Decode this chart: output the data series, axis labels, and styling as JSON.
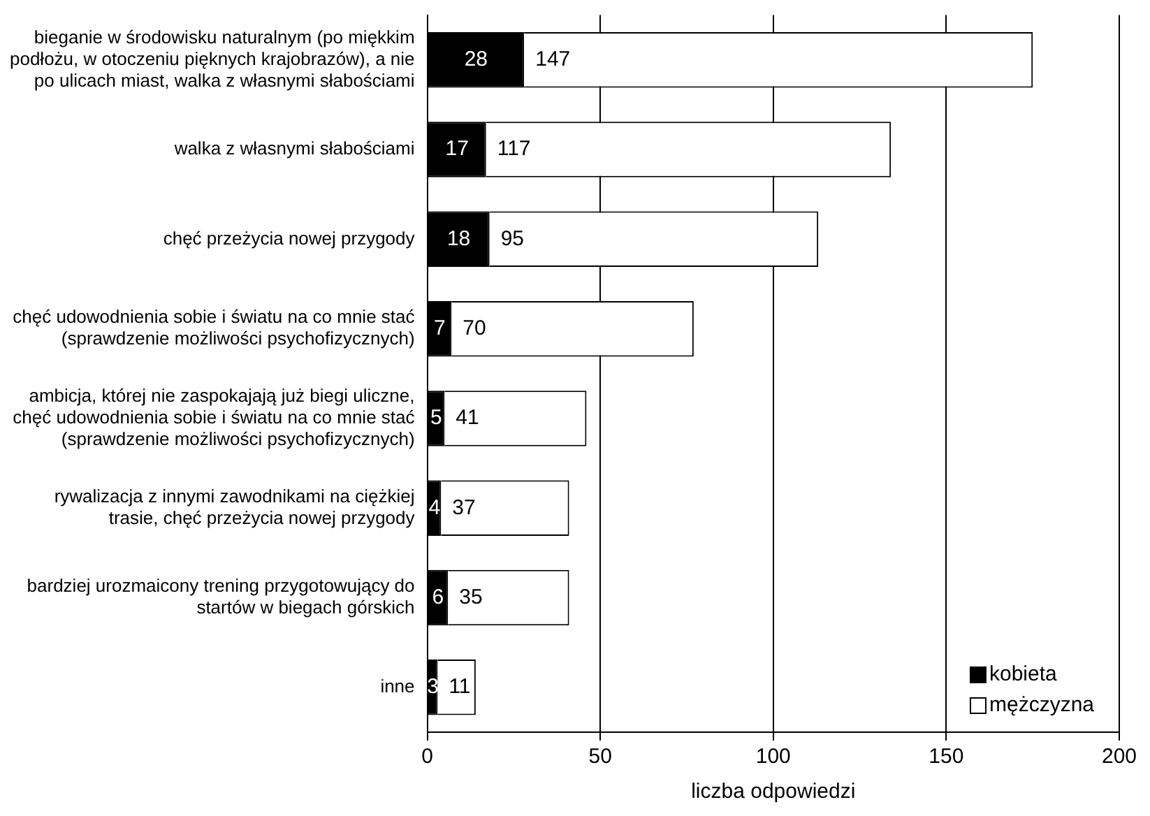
{
  "chart_data": {
    "type": "bar",
    "orientation": "horizontal",
    "stacked": true,
    "categories": [
      "bieganie w środowisku naturalnym (po miękkim\npodłożu, w otoczeniu pięknych krajobrazów), a nie\npo ulicach miast, walka z własnymi słabościami",
      "walka z własnymi słabościami",
      "chęć przeżycia nowej przygody",
      "chęć udowodnienia sobie i światu na co mnie stać\n(sprawdzenie możliwości psychofizycznych)",
      "ambicja, której nie zaspokajają już biegi uliczne,\nchęć udowodnienia sobie i światu na co mnie stać\n(sprawdzenie możliwości psychofizycznych)",
      "rywalizacja z innymi zawodnikami na ciężkiej\ntrasie, chęć przeżycia nowej przygody",
      "bardziej urozmaicony trening przygotowujący do\nstartów w biegach górskich",
      "inne"
    ],
    "series": [
      {
        "name": "kobieta",
        "color": "#000000",
        "values": [
          28,
          17,
          18,
          7,
          5,
          4,
          6,
          3
        ]
      },
      {
        "name": "mężczyzna",
        "color": "#ffffff",
        "values": [
          147,
          117,
          95,
          70,
          41,
          37,
          35,
          11
        ]
      }
    ],
    "xlim": [
      0,
      200
    ],
    "xticks": [
      0,
      50,
      100,
      150,
      200
    ],
    "xlabel": "liczba odpowiedzi",
    "grid": "x",
    "legend": "bottom right",
    "data_labels": true
  }
}
